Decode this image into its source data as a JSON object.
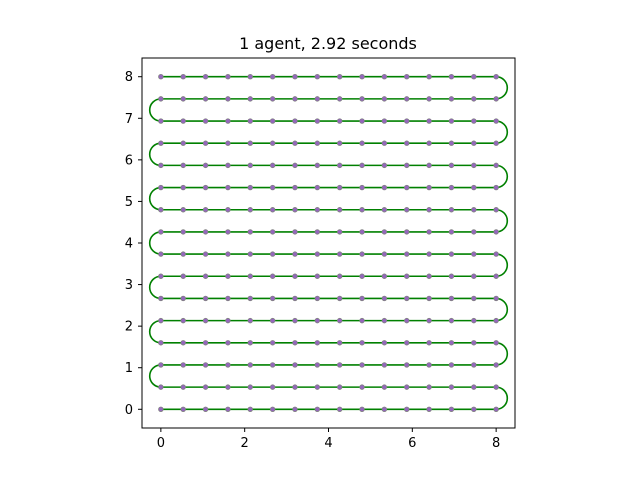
{
  "chart_data": {
    "type": "line",
    "title": "1 agent, 2.92 seconds",
    "xlabel": "",
    "ylabel": "",
    "xlim": [
      -0.45,
      8.45
    ],
    "ylim": [
      -0.45,
      8.45
    ],
    "xticks": [
      0,
      2,
      4,
      6,
      8
    ],
    "yticks": [
      0,
      1,
      2,
      3,
      4,
      5,
      6,
      7,
      8
    ],
    "grid": false,
    "legend": "none",
    "colors": {
      "path": "#008000",
      "waypoints": "#9467bd",
      "waypoint_edge": "#808080",
      "axes": "#000000"
    },
    "rows_y": [
      0,
      0.533,
      1.067,
      1.6,
      2.133,
      2.667,
      3.2,
      3.733,
      4.267,
      4.8,
      5.333,
      5.867,
      6.4,
      6.933,
      7.467,
      8.0
    ],
    "waypoint_x": [
      0,
      0.533,
      1.067,
      1.6,
      2.133,
      2.667,
      3.2,
      3.733,
      4.267,
      4.8,
      5.333,
      5.867,
      6.4,
      6.933,
      7.467,
      8.0
    ],
    "turn_radius": 0.2665,
    "series": [
      {
        "type": "path",
        "description_points": "boustrophedon coverage path from (0,0) to (8,8) with semicircular turns beyond x=8 and before x=0"
      }
    ]
  }
}
